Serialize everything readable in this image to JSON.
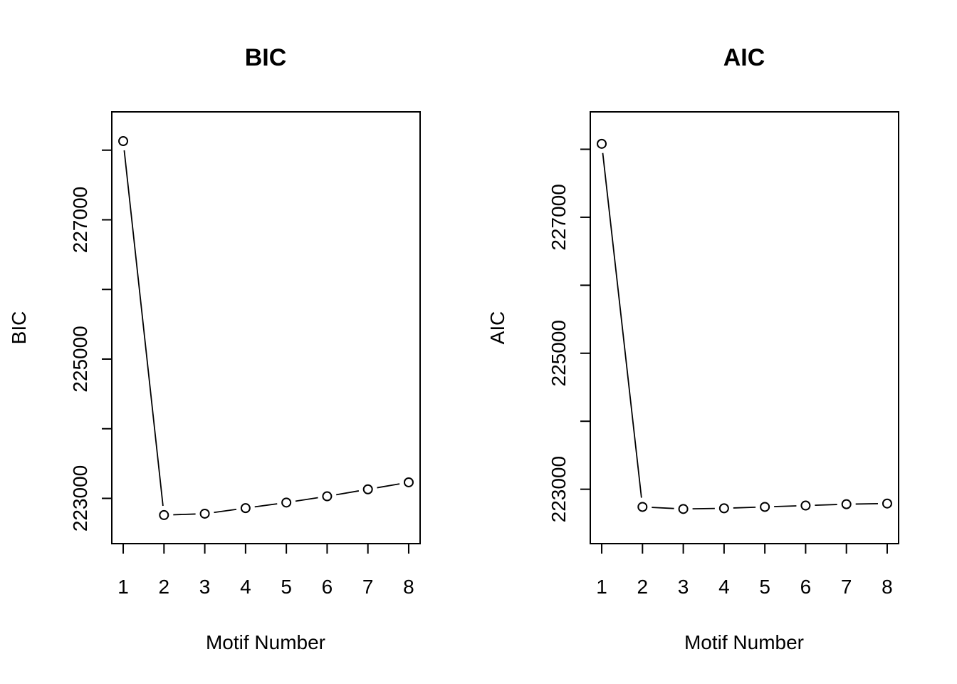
{
  "chart_data": [
    {
      "type": "line",
      "title": "BIC",
      "xlabel": "Motif Number",
      "ylabel": "BIC",
      "x": [
        1,
        2,
        3,
        4,
        5,
        6,
        7,
        8
      ],
      "values": [
        228130,
        222760,
        222780,
        222860,
        222940,
        223030,
        223130,
        223230
      ],
      "xticks": [
        "1",
        "2",
        "3",
        "4",
        "5",
        "6",
        "7",
        "8"
      ],
      "yticks": [
        223000,
        225000,
        227000
      ],
      "yticks_minor": [
        224000,
        226000
      ],
      "ylim": [
        222350,
        228550
      ],
      "xlim": [
        0.72,
        8.28
      ],
      "markers": "open-circle",
      "line_style": "segments-with-gaps",
      "grid": false
    },
    {
      "type": "line",
      "title": "AIC",
      "xlabel": "Motif Number",
      "ylabel": "AIC",
      "x": [
        1,
        2,
        3,
        4,
        5,
        6,
        7,
        8
      ],
      "values": [
        228080,
        222740,
        222710,
        222720,
        222740,
        222760,
        222780,
        222790
      ],
      "xticks": [
        "1",
        "2",
        "3",
        "4",
        "5",
        "6",
        "7",
        "8"
      ],
      "yticks": [
        223000,
        225000,
        227000
      ],
      "yticks_minor": [
        224000,
        226000
      ],
      "ylim": [
        222200,
        228550
      ],
      "xlim": [
        0.72,
        8.28
      ],
      "markers": "open-circle",
      "line_style": "segments-with-gaps",
      "grid": false
    }
  ]
}
